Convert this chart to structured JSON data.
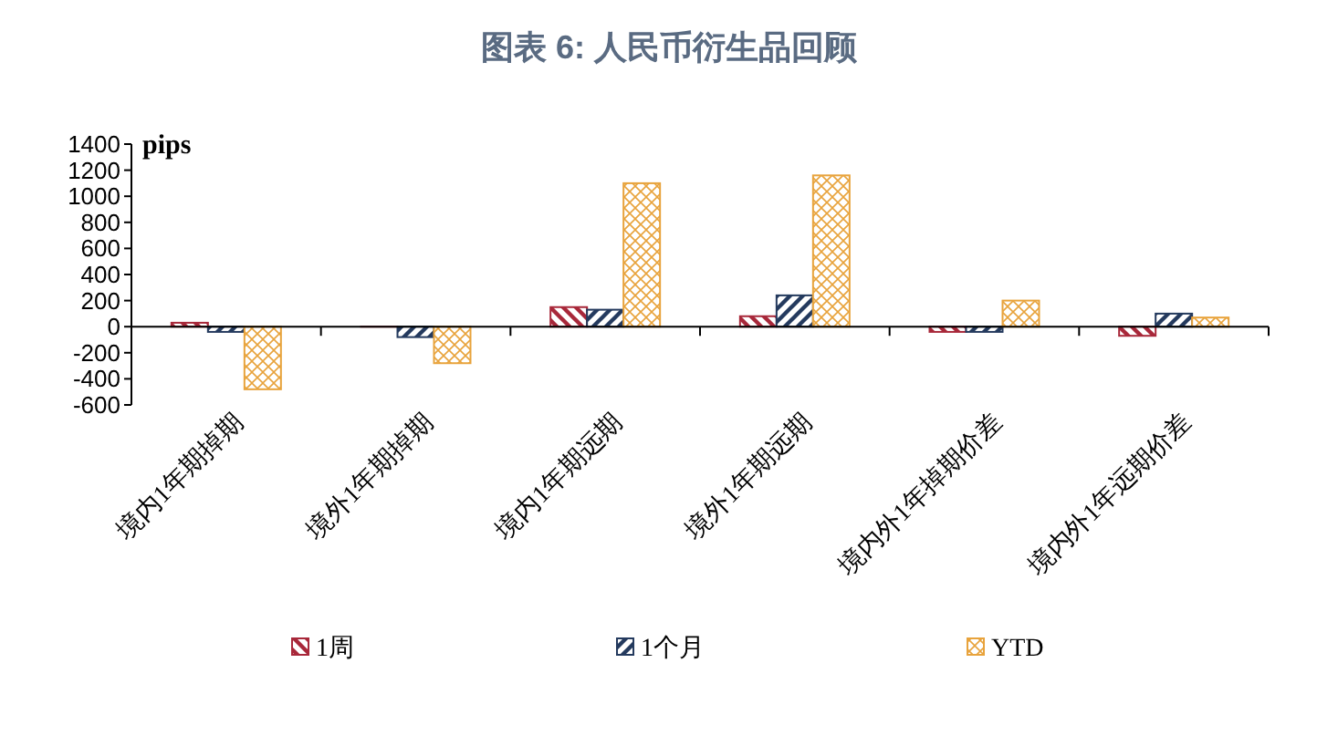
{
  "chart_data": {
    "type": "bar",
    "title": "图表 6: 人民币衍生品回顾",
    "ylabel": "pips",
    "categories": [
      "境内1年期掉期",
      "境外1年期掉期",
      "境内1年期远期",
      "境外1年期远期",
      "境内外1年掉期价差",
      "境内外1年远期价差"
    ],
    "series": [
      {
        "name": "1周",
        "color": "#a8283a",
        "values": [
          30,
          0,
          150,
          80,
          -40,
          -70
        ]
      },
      {
        "name": "1个月",
        "color": "#243a5e",
        "values": [
          -40,
          -80,
          130,
          240,
          -40,
          100
        ]
      },
      {
        "name": "YTD",
        "color": "#e8a33c",
        "values": [
          -480,
          -280,
          1100,
          1160,
          200,
          70
        ]
      }
    ],
    "ylim": [
      -600,
      1400
    ],
    "yticks": [
      -600,
      -400,
      -200,
      0,
      200,
      400,
      600,
      800,
      1000,
      1200,
      1400
    ],
    "legend": "bottom"
  }
}
